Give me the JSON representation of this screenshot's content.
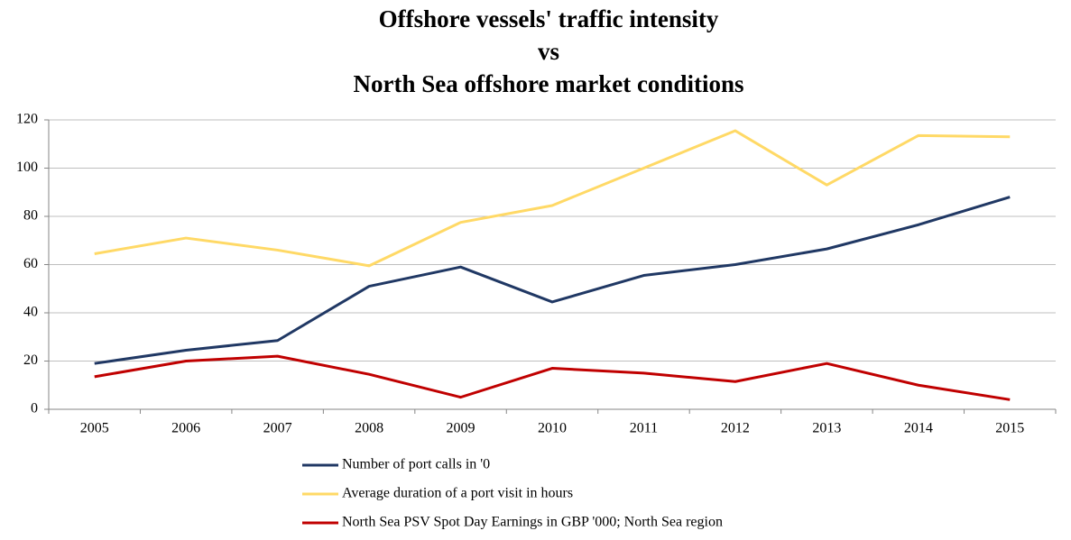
{
  "chart_data": {
    "type": "line",
    "title": [
      "Offshore vessels' traffic intensity",
      "vs",
      "North Sea offshore market conditions"
    ],
    "categories": [
      "2005",
      "2006",
      "2007",
      "2008",
      "2009",
      "2010",
      "2011",
      "2012",
      "2013",
      "2014",
      "2015"
    ],
    "series": [
      {
        "name": "Number of port calls in '0",
        "color": "#203864",
        "values": [
          19,
          24.5,
          28.5,
          51,
          59,
          44.5,
          55.5,
          60,
          66.5,
          76.5,
          88
        ]
      },
      {
        "name": "Average duration of a port visit in hours",
        "color": "#ffd966",
        "values": [
          64.5,
          71,
          66,
          59.5,
          77.5,
          84.5,
          100,
          115.5,
          93,
          113.5,
          113
        ]
      },
      {
        "name": "North Sea PSV Spot Day Earnings in GBP '000; North Sea region",
        "color": "#c00000",
        "values": [
          13.5,
          20,
          22,
          14.5,
          5,
          17,
          15,
          11.5,
          19,
          10,
          4
        ]
      }
    ],
    "ylim": [
      0,
      120
    ],
    "yticks": [
      0,
      20,
      40,
      60,
      80,
      100,
      120
    ],
    "grid": true,
    "legend": "bottom"
  }
}
